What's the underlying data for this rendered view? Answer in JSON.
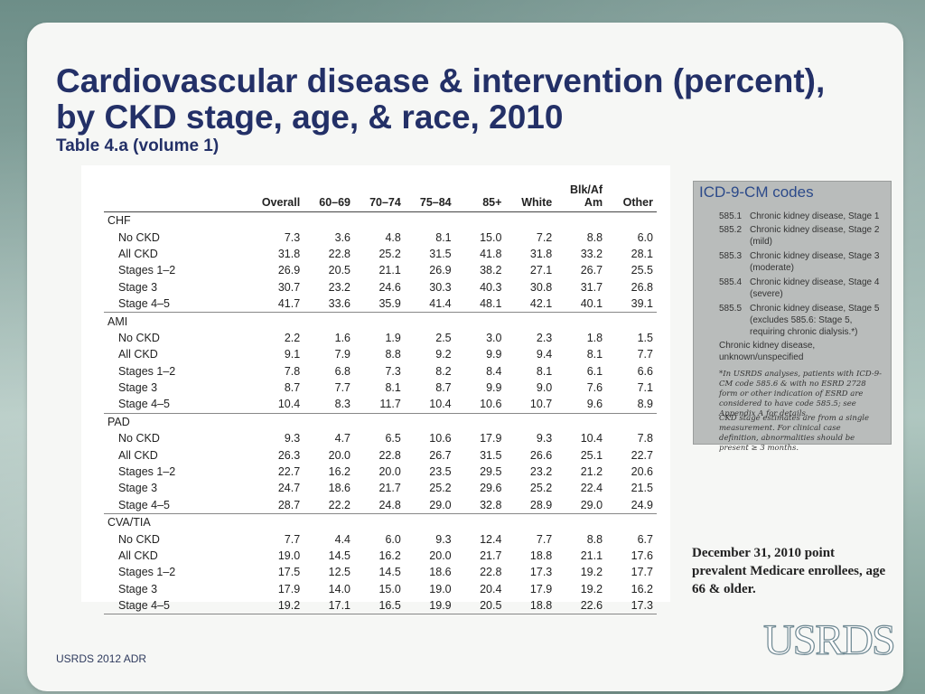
{
  "title": "Cardiovascular disease & intervention (percent), by CKD stage, age, & race, 2010",
  "subtitle": "Table 4.a (volume 1)",
  "table": {
    "columns": [
      "Overall",
      "60–69",
      "70–74",
      "75–84",
      "85+",
      "White",
      "Blk/Af Am",
      "Other"
    ],
    "groups": [
      {
        "name": "CHF",
        "rows": [
          {
            "label": "No CKD",
            "values": [
              "7.3",
              "3.6",
              "4.8",
              "8.1",
              "15.0",
              "7.2",
              "8.8",
              "6.0"
            ]
          },
          {
            "label": "All CKD",
            "values": [
              "31.8",
              "22.8",
              "25.2",
              "31.5",
              "41.8",
              "31.8",
              "33.2",
              "28.1"
            ]
          },
          {
            "label": "Stages 1–2",
            "values": [
              "26.9",
              "20.5",
              "21.1",
              "26.9",
              "38.2",
              "27.1",
              "26.7",
              "25.5"
            ]
          },
          {
            "label": "Stage 3",
            "values": [
              "30.7",
              "23.2",
              "24.6",
              "30.3",
              "40.3",
              "30.8",
              "31.7",
              "26.8"
            ]
          },
          {
            "label": "Stage 4–5",
            "values": [
              "41.7",
              "33.6",
              "35.9",
              "41.4",
              "48.1",
              "42.1",
              "40.1",
              "39.1"
            ]
          }
        ]
      },
      {
        "name": "AMI",
        "rows": [
          {
            "label": "No CKD",
            "values": [
              "2.2",
              "1.6",
              "1.9",
              "2.5",
              "3.0",
              "2.3",
              "1.8",
              "1.5"
            ]
          },
          {
            "label": "All CKD",
            "values": [
              "9.1",
              "7.9",
              "8.8",
              "9.2",
              "9.9",
              "9.4",
              "8.1",
              "7.7"
            ]
          },
          {
            "label": "Stages 1–2",
            "values": [
              "7.8",
              "6.8",
              "7.3",
              "8.2",
              "8.4",
              "8.1",
              "6.1",
              "6.6"
            ]
          },
          {
            "label": "Stage 3",
            "values": [
              "8.7",
              "7.7",
              "8.1",
              "8.7",
              "9.9",
              "9.0",
              "7.6",
              "7.1"
            ]
          },
          {
            "label": "Stage 4–5",
            "values": [
              "10.4",
              "8.3",
              "11.7",
              "10.4",
              "10.6",
              "10.7",
              "9.6",
              "8.9"
            ]
          }
        ]
      },
      {
        "name": "PAD",
        "rows": [
          {
            "label": "No CKD",
            "values": [
              "9.3",
              "4.7",
              "6.5",
              "10.6",
              "17.9",
              "9.3",
              "10.4",
              "7.8"
            ]
          },
          {
            "label": "All CKD",
            "values": [
              "26.3",
              "20.0",
              "22.8",
              "26.7",
              "31.5",
              "26.6",
              "25.1",
              "22.7"
            ]
          },
          {
            "label": "Stages 1–2",
            "values": [
              "22.7",
              "16.2",
              "20.0",
              "23.5",
              "29.5",
              "23.2",
              "21.2",
              "20.6"
            ]
          },
          {
            "label": "Stage 3",
            "values": [
              "24.7",
              "18.6",
              "21.7",
              "25.2",
              "29.6",
              "25.2",
              "22.4",
              "21.5"
            ]
          },
          {
            "label": "Stage 4–5",
            "values": [
              "28.7",
              "22.2",
              "24.8",
              "29.0",
              "32.8",
              "28.9",
              "29.0",
              "24.9"
            ]
          }
        ]
      },
      {
        "name": "CVA/TIA",
        "rows": [
          {
            "label": "No CKD",
            "values": [
              "7.7",
              "4.4",
              "6.0",
              "9.3",
              "12.4",
              "7.7",
              "8.8",
              "6.7"
            ]
          },
          {
            "label": "All CKD",
            "values": [
              "19.0",
              "14.5",
              "16.2",
              "20.0",
              "21.7",
              "18.8",
              "21.1",
              "17.6"
            ]
          },
          {
            "label": "Stages 1–2",
            "values": [
              "17.5",
              "12.5",
              "14.5",
              "18.6",
              "22.8",
              "17.3",
              "19.2",
              "17.7"
            ]
          },
          {
            "label": "Stage 3",
            "values": [
              "17.9",
              "14.0",
              "15.0",
              "19.0",
              "20.4",
              "17.9",
              "19.2",
              "16.2"
            ]
          },
          {
            "label": "Stage 4–5",
            "values": [
              "19.2",
              "17.1",
              "16.5",
              "19.9",
              "20.5",
              "18.8",
              "22.6",
              "17.3"
            ]
          }
        ]
      }
    ]
  },
  "codes_box": {
    "heading": "ICD-9-CM codes",
    "codes": [
      {
        "code": "585.1",
        "desc": "Chronic kidney disease, Stage 1"
      },
      {
        "code": "585.2",
        "desc": "Chronic kidney disease, Stage 2 (mild)"
      },
      {
        "code": "585.3",
        "desc": "Chronic kidney disease, Stage 3 (moderate)"
      },
      {
        "code": "585.4",
        "desc": "Chronic kidney disease, Stage 4 (severe)"
      },
      {
        "code": "585.5",
        "desc": "Chronic kidney disease, Stage 5 (excludes 585.6: Stage 5, requiring chronic dialysis.*)"
      }
    ],
    "unknown": "Chronic kidney disease, unknown/unspecified",
    "note1": "*In USRDS analyses, patients with ICD-9-CM code 585.6 & with no ESRD 2728 form or other indication of ESRD are considered to have code 585.5; see Appendix A for details.",
    "note2": "CKD stage estimates are from a single measurement. For clinical case definition, abnormalities should be present ≥ 3 months."
  },
  "caption": " December 31, 2010 point prevalent Medicare enrollees, age 66 & older.",
  "logo_text": "USRDS",
  "footer": "USRDS 2012 ADR"
}
